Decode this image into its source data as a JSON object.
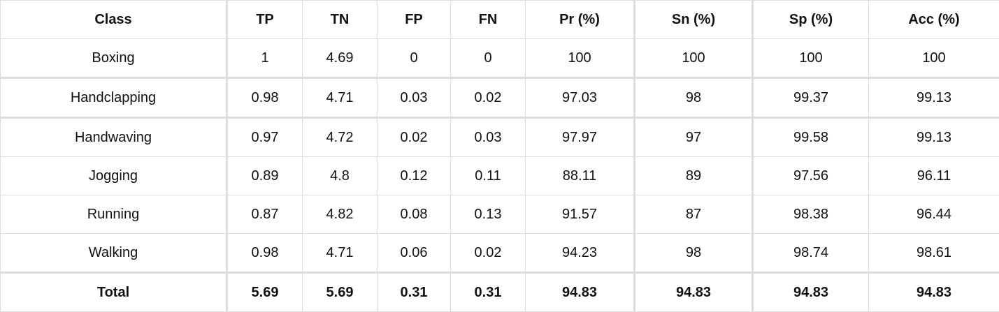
{
  "table": {
    "headers": [
      "Class",
      "TP",
      "TN",
      "FP",
      "FN",
      "Pr (%)",
      "Sn (%)",
      "Sp (%)",
      "Acc (%)"
    ],
    "rows": [
      [
        "Boxing",
        "1",
        "4.69",
        "0",
        "0",
        "100",
        "100",
        "100",
        "100"
      ],
      [
        "Handclapping",
        "0.98",
        "4.71",
        "0.03",
        "0.02",
        "97.03",
        "98",
        "99.37",
        "99.13"
      ],
      [
        "Handwaving",
        "0.97",
        "4.72",
        "0.02",
        "0.03",
        "97.97",
        "97",
        "99.58",
        "99.13"
      ],
      [
        "Jogging",
        "0.89",
        "4.8",
        "0.12",
        "0.11",
        "88.11",
        "89",
        "97.56",
        "96.11"
      ],
      [
        "Running",
        "0.87",
        "4.82",
        "0.08",
        "0.13",
        "91.57",
        "87",
        "98.38",
        "96.44"
      ],
      [
        "Walking",
        "0.98",
        "4.71",
        "0.06",
        "0.02",
        "94.23",
        "98",
        "98.74",
        "98.61"
      ]
    ],
    "total": [
      "Total",
      "5.69",
      "5.69",
      "0.31",
      "0.31",
      "94.83",
      "94.83",
      "94.83",
      "94.83"
    ]
  }
}
